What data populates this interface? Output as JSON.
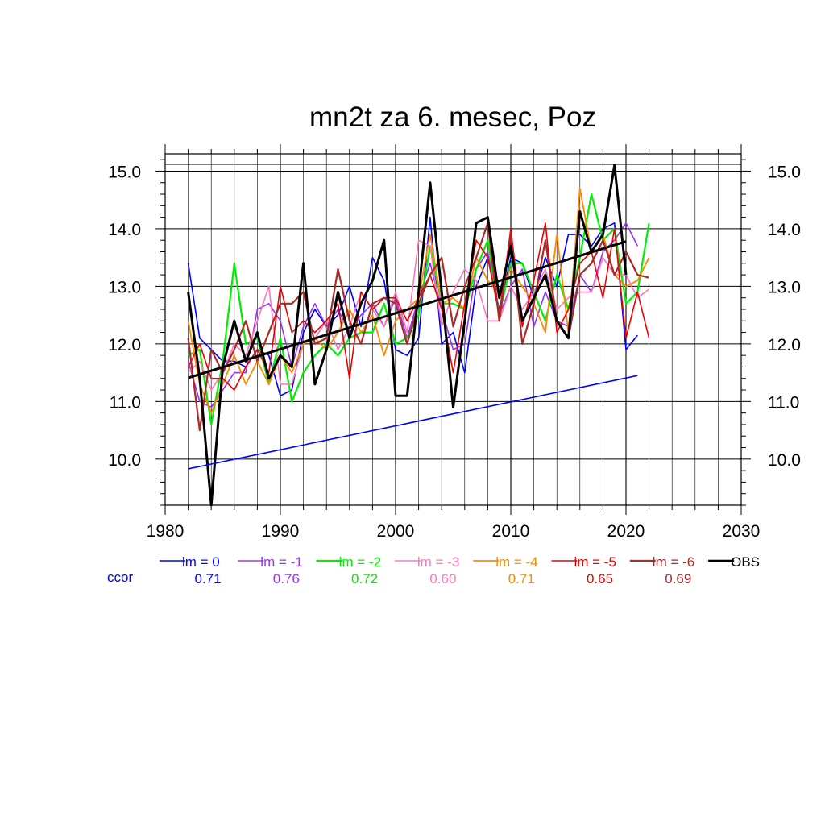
{
  "chart_data": {
    "type": "line",
    "title": "mn2t za 6. mesec, Poz",
    "xlabel": "",
    "ylabel": "",
    "xlim": [
      1980,
      2030
    ],
    "ylim": [
      9.2,
      15.3
    ],
    "x_ticks": [
      1980,
      1990,
      2000,
      2010,
      2020,
      2030
    ],
    "x_tick_labels": [
      "1980",
      "1990",
      "2000",
      "2010",
      "2020",
      "2030"
    ],
    "y_ticks": [
      10,
      11,
      12,
      13,
      14,
      15
    ],
    "y_tick_labels": [
      "10.0",
      "11.0",
      "12.0",
      "13.0",
      "14.0",
      "15.0"
    ],
    "grid": true,
    "legend_position": "bottom",
    "ccor_label": "ccor",
    "years": [
      1982,
      1983,
      1984,
      1985,
      1986,
      1987,
      1988,
      1989,
      1990,
      1991,
      1992,
      1993,
      1994,
      1995,
      1996,
      1997,
      1998,
      1999,
      2000,
      2001,
      2002,
      2003,
      2004,
      2005,
      2006,
      2007,
      2008,
      2009,
      2010,
      2011,
      2012,
      2013,
      2014,
      2015,
      2016,
      2017,
      2018,
      2019,
      2020,
      2021,
      2022
    ],
    "series": [
      {
        "name": "lm = 0",
        "color": "#0000ff",
        "width": 1.6,
        "ccor": "0.71",
        "values": [
          13.4,
          12.1,
          11.9,
          11.7,
          11.7,
          11.6,
          11.9,
          11.8,
          11.1,
          11.2,
          12.2,
          12.6,
          12.3,
          12.5,
          13.0,
          12.3,
          13.5,
          13.1,
          11.9,
          11.8,
          12.1,
          14.2,
          12.0,
          12.2,
          11.5,
          13.0,
          13.5,
          12.6,
          13.5,
          13.4,
          12.8,
          13.5,
          13.0,
          13.9,
          13.9,
          13.7,
          14.0,
          14.1,
          11.9,
          12.15,
          null
        ]
      },
      {
        "name": "lm = -1",
        "color": "#9933ee",
        "width": 1.6,
        "ccor": "0.76",
        "values": [
          11.7,
          11.0,
          10.9,
          11.2,
          11.5,
          11.5,
          12.6,
          12.7,
          12.4,
          11.6,
          12.3,
          12.7,
          12.3,
          12.6,
          12.2,
          12.5,
          12.7,
          12.3,
          12.8,
          12.1,
          12.8,
          13.4,
          12.6,
          11.9,
          12.0,
          13.3,
          13.6,
          12.5,
          13.0,
          13.3,
          12.3,
          12.9,
          12.4,
          12.3,
          13.2,
          12.9,
          13.6,
          13.8,
          14.1,
          13.7,
          null
        ]
      },
      {
        "name": "lm = -2",
        "color": "#00ee00",
        "width": 2.2,
        "ccor": "0.72",
        "values": [
          11.8,
          11.9,
          10.6,
          11.7,
          13.4,
          12.0,
          12.1,
          11.3,
          12.1,
          11.0,
          11.5,
          11.8,
          12.0,
          11.8,
          12.1,
          12.2,
          12.2,
          12.7,
          12.0,
          12.1,
          12.5,
          13.7,
          12.7,
          12.7,
          12.6,
          13.3,
          13.8,
          12.5,
          13.4,
          13.4,
          12.9,
          12.4,
          13.2,
          12.6,
          13.5,
          14.6,
          13.8,
          14.0,
          12.7,
          12.9,
          14.1
        ]
      },
      {
        "name": "lm = -3",
        "color": "#ff77bb",
        "width": 1.6,
        "ccor": "0.60",
        "values": [
          11.5,
          11.7,
          11.2,
          11.5,
          12.0,
          11.8,
          12.4,
          13.0,
          11.3,
          11.3,
          12.0,
          12.1,
          12.4,
          11.9,
          12.3,
          12.9,
          12.6,
          12.3,
          12.9,
          12.2,
          13.8,
          13.7,
          12.3,
          12.9,
          13.3,
          13.1,
          12.4,
          12.4,
          13.0,
          12.6,
          12.9,
          13.3,
          12.6,
          12.8,
          12.9,
          12.9,
          13.5,
          13.2,
          13.2,
          12.8,
          12.95
        ]
      },
      {
        "name": "lm = -4",
        "color": "#ff8800",
        "width": 1.8,
        "ccor": "0.71",
        "values": [
          12.4,
          11.3,
          10.8,
          11.3,
          11.8,
          11.3,
          11.7,
          11.3,
          11.8,
          11.5,
          12.0,
          12.1,
          11.9,
          12.2,
          12.6,
          12.2,
          12.5,
          11.8,
          12.4,
          12.6,
          12.8,
          13.9,
          12.7,
          12.8,
          12.6,
          13.5,
          13.1,
          12.9,
          13.3,
          13.0,
          12.7,
          12.2,
          13.9,
          12.2,
          14.7,
          13.6,
          13.9,
          13.2,
          13.0,
          13.1,
          13.5
        ]
      },
      {
        "name": "lm = -5",
        "color": "#ee0000",
        "width": 1.6,
        "ccor": "0.65",
        "values": [
          11.6,
          12.0,
          11.4,
          11.4,
          11.2,
          11.6,
          11.9,
          11.5,
          13.0,
          12.2,
          12.4,
          12.2,
          12.4,
          12.7,
          11.4,
          12.9,
          12.6,
          12.8,
          12.8,
          12.4,
          12.8,
          13.2,
          12.6,
          11.5,
          12.7,
          13.8,
          13.5,
          12.5,
          14.0,
          12.3,
          13.1,
          14.1,
          12.2,
          12.6,
          13.4,
          13.6,
          12.8,
          14.0,
          12.1,
          12.9,
          12.1
        ]
      },
      {
        "name": "lm = -6",
        "color": "#aa2a2a",
        "width": 2.2,
        "ccor": "0.69",
        "values": [
          12.1,
          10.5,
          11.9,
          11.5,
          11.9,
          12.4,
          11.7,
          12.2,
          12.7,
          12.7,
          12.9,
          12.0,
          12.1,
          13.3,
          12.4,
          12.0,
          12.7,
          12.8,
          12.7,
          12.0,
          12.7,
          13.2,
          13.5,
          12.3,
          13.0,
          13.5,
          14.1,
          12.4,
          13.9,
          12.0,
          12.7,
          13.8,
          12.4,
          12.1,
          13.2,
          13.4,
          13.8,
          13.2,
          13.6,
          13.2,
          13.15
        ]
      },
      {
        "name": "OBS",
        "color": "#000000",
        "width": 3.0,
        "ccor": "",
        "values": [
          12.9,
          11.4,
          9.2,
          11.6,
          12.4,
          11.7,
          12.2,
          11.4,
          11.8,
          11.6,
          13.4,
          11.3,
          11.9,
          12.9,
          12.1,
          12.7,
          13.1,
          13.8,
          11.1,
          11.1,
          12.9,
          14.8,
          12.9,
          10.9,
          12.4,
          14.1,
          14.2,
          12.8,
          13.7,
          12.4,
          12.8,
          13.2,
          12.4,
          12.1,
          14.3,
          13.6,
          13.9,
          15.1,
          13.2,
          null,
          null
        ]
      }
    ],
    "trend_lines": [
      {
        "name": "OBS trend",
        "color": "#000000",
        "width": 3.0,
        "x": [
          1982,
          2020
        ],
        "y": [
          11.41,
          13.78
        ]
      },
      {
        "name": "lm = 0 trend",
        "color": "#0000ff",
        "width": 1.6,
        "x": [
          1982,
          2021
        ],
        "y": [
          9.83,
          11.45
        ]
      }
    ]
  }
}
